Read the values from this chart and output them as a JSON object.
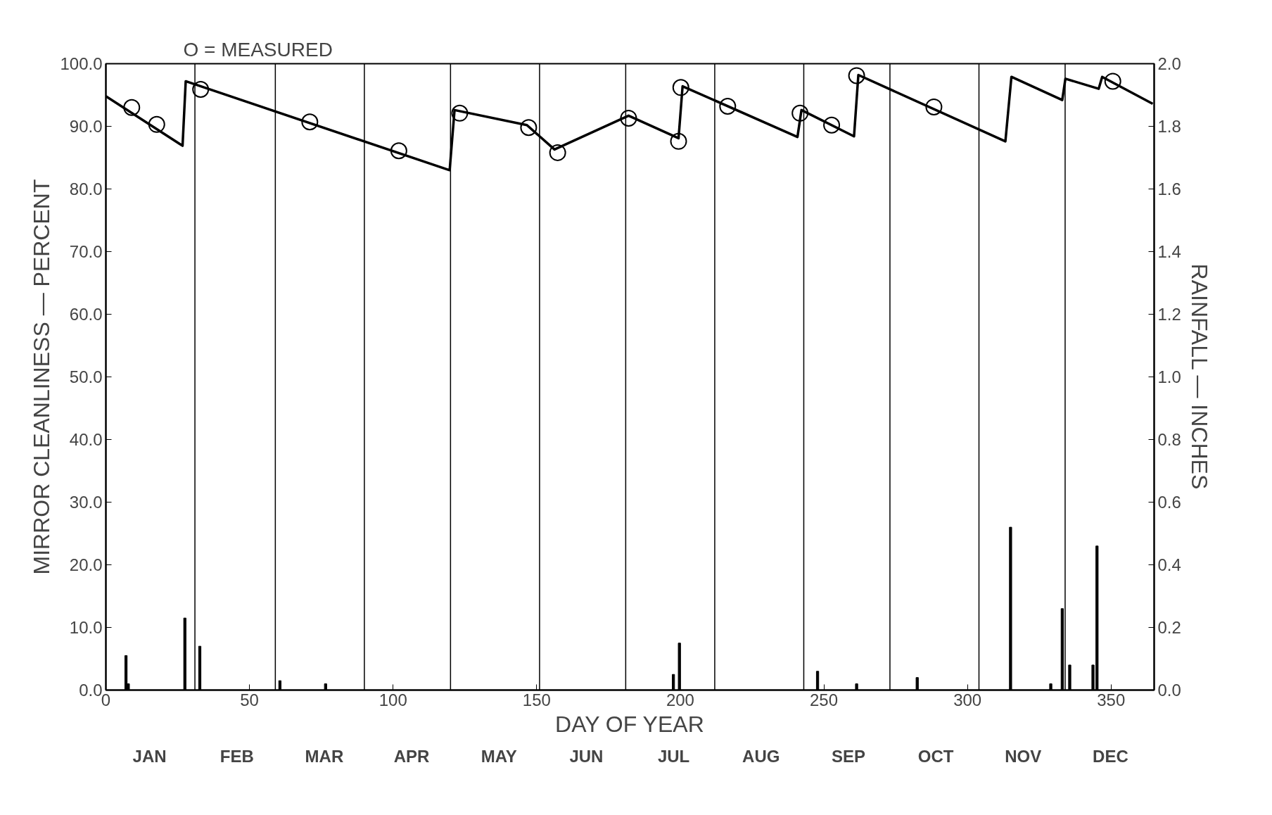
{
  "chart_data": {
    "type": "line",
    "xlabel": "DAY OF YEAR",
    "ylabel": "MIRROR CLEANLINESS — PERCENT",
    "y2label": "RAINFALL — INCHES",
    "xlim": [
      0,
      365
    ],
    "xticks": [
      0,
      50,
      100,
      150,
      200,
      250,
      300,
      350
    ],
    "ylim": [
      0,
      100
    ],
    "yticks": [
      {
        "value": 0,
        "label": "0.0"
      },
      {
        "value": 10,
        "label": "10.0"
      },
      {
        "value": 20,
        "label": "20.0"
      },
      {
        "value": 30,
        "label": "30.0"
      },
      {
        "value": 40,
        "label": "40.0"
      },
      {
        "value": 50,
        "label": "50.0"
      },
      {
        "value": 60,
        "label": "60.0"
      },
      {
        "value": 70,
        "label": "70.0"
      },
      {
        "value": 80,
        "label": "80.0"
      },
      {
        "value": 90,
        "label": "90.0"
      },
      {
        "value": 100,
        "label": "100.0"
      }
    ],
    "y2lim": [
      0,
      2
    ],
    "y2ticks": [
      {
        "value": 0,
        "label": "0.0"
      },
      {
        "value": 0.2,
        "label": "0.2"
      },
      {
        "value": 0.4,
        "label": "0.4"
      },
      {
        "value": 0.6,
        "label": "0.6"
      },
      {
        "value": 0.8,
        "label": "0.8"
      },
      {
        "value": 1,
        "label": "1.0"
      },
      {
        "value": 1.2,
        "label": "1.2"
      },
      {
        "value": 1.4,
        "label": "1.4"
      },
      {
        "value": 1.6,
        "label": "1.6"
      },
      {
        "value": 1.8,
        "label": "1.8"
      },
      {
        "value": 2,
        "label": "2.0"
      }
    ],
    "grid": false,
    "series": [
      {
        "color": "#000000",
        "line_style": "solid",
        "marker": "none",
        "x": [
          0,
          26.7,
          27.8,
          119.7,
          121.4,
          146.6,
          156.2,
          182,
          199.4,
          200.8,
          240.8,
          242.2,
          260.5,
          262,
          313.2,
          315.3,
          333,
          334.1,
          345.7,
          346.9,
          364.5
        ],
        "values": [
          94.8,
          86.9,
          97.2,
          83.0,
          92.6,
          90.2,
          86.3,
          91.7,
          88.1,
          96.4,
          88.3,
          92.6,
          88.4,
          98.2,
          87.6,
          97.9,
          94.2,
          97.6,
          96.0,
          97.9,
          93.6
        ]
      },
      {
        "type": "scatter",
        "color": "#000000",
        "marker": "circle",
        "x": [
          9,
          17.7,
          33,
          71,
          102,
          123.2,
          147.2,
          157.3,
          182,
          199.4,
          200.2,
          216.5,
          241.7,
          252.7,
          261.4,
          288.3,
          350.6
        ],
        "values": [
          93.0,
          90.3,
          95.9,
          90.7,
          86.1,
          92.1,
          89.8,
          85.8,
          91.3,
          87.6,
          96.2,
          93.2,
          92.1,
          90.2,
          98.1,
          93.1,
          97.2
        ]
      },
      {
        "type": "bar",
        "axis": "y2",
        "color": "#000000",
        "x": [
          7,
          7.8,
          27.5,
          32.7,
          60.6,
          76.5,
          197.6,
          199.7,
          247.8,
          261.4,
          282.5,
          315,
          329,
          333,
          335.6,
          343.7,
          345.1
        ],
        "values": [
          0.11,
          0.02,
          0.23,
          0.14,
          0.03,
          0.02,
          0.05,
          0.15,
          0.06,
          0.02,
          0.04,
          0.52,
          0.02,
          0.26,
          0.08,
          0.08,
          0.46
        ]
      }
    ],
    "ref_lines": [
      {
        "axis": "x",
        "value": 31,
        "color": "#000000"
      },
      {
        "axis": "x",
        "value": 59,
        "color": "#000000"
      },
      {
        "axis": "x",
        "value": 90,
        "color": "#000000"
      },
      {
        "axis": "x",
        "value": 120,
        "color": "#000000"
      },
      {
        "axis": "x",
        "value": 151,
        "color": "#000000"
      },
      {
        "axis": "x",
        "value": 181,
        "color": "#000000"
      },
      {
        "axis": "x",
        "value": 212,
        "color": "#000000"
      },
      {
        "axis": "x",
        "value": 243,
        "color": "#000000"
      },
      {
        "axis": "x",
        "value": 273,
        "color": "#000000"
      },
      {
        "axis": "x",
        "value": 304,
        "color": "#000000"
      },
      {
        "axis": "x",
        "value": 334,
        "color": "#000000"
      }
    ],
    "annotations": [
      "O = MEASURED",
      "JAN",
      "FEB",
      "MAR",
      "APR",
      "MAY",
      "JUN",
      "JUL",
      "AUG",
      "SEP",
      "OCT",
      "NOV",
      "DEC"
    ]
  }
}
